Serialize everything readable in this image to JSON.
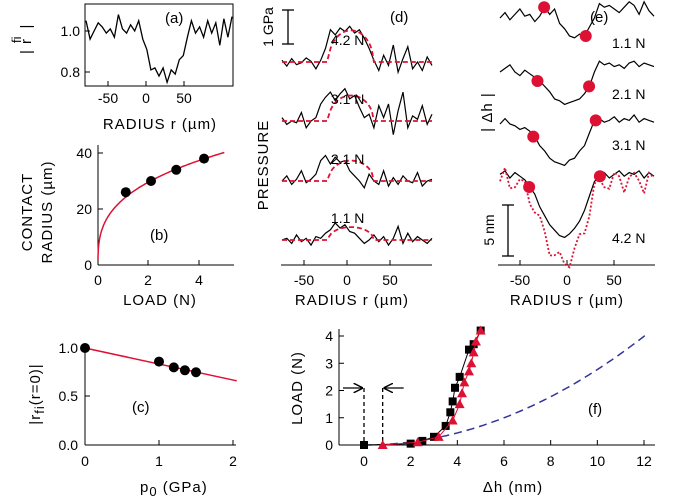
{
  "colors": {
    "black": "#000000",
    "red": "#dd1133",
    "blue": "#333399"
  },
  "chart_data": [
    {
      "panel": "a",
      "type": "line",
      "ylabel": "| r fi |",
      "xlabel": "RADIUS r (µm)",
      "xlim": [
        -85,
        100
      ],
      "ylim": [
        0.72,
        1.1
      ],
      "xticks": [
        "-50",
        "0",
        "50"
      ],
      "yticks": [
        "1.0",
        "0.8"
      ],
      "y": [
        1.05,
        0.96,
        1.0,
        1.04,
        1.02,
        0.99,
        1.01,
        0.97,
        1.08,
        1.01,
        0.99,
        1.03,
        1.0,
        1.05,
        0.96,
        0.91,
        0.81,
        0.82,
        0.78,
        0.82,
        0.75,
        0.81,
        0.79,
        0.86,
        0.88,
        0.97,
        1.05,
        0.99,
        1.02,
        0.97,
        1.05,
        0.99,
        1.04,
        0.93,
        1.06,
        0.97,
        1.07
      ]
    },
    {
      "panel": "b",
      "type": "scatter",
      "ylabel": [
        "CONTACT",
        "RADIUS (µm)"
      ],
      "xlabel": "LOAD (N)",
      "xlim": [
        0,
        5
      ],
      "ylim": [
        0,
        40
      ],
      "xticks": [
        "0",
        "2",
        "4"
      ],
      "yticks": [
        "0",
        "20",
        "40"
      ],
      "x": [
        1.1,
        2.1,
        3.1,
        4.2
      ],
      "y": [
        26,
        30,
        34,
        38
      ],
      "fit": "a = 23.5·L^(1/3)"
    },
    {
      "panel": "c",
      "type": "scatter",
      "ylabel": "|r fi (r=0)|",
      "xlabel": "p 0 (GPa)",
      "xlim": [
        0,
        2
      ],
      "ylim": [
        0,
        1.1
      ],
      "xticks": [
        "0",
        "1",
        "2"
      ],
      "yticks": [
        "0.0",
        "0.5",
        "1.0"
      ],
      "x": [
        0,
        1.0,
        1.2,
        1.35,
        1.5
      ],
      "y": [
        1.0,
        0.86,
        0.8,
        0.77,
        0.75
      ],
      "fit": "y = 1 − 0.165·p0"
    },
    {
      "panel": "d",
      "type": "line",
      "ylabel": "PRESSURE",
      "xlabel": "RADIUS r (µm)",
      "scale_bar": "1 GPa",
      "xlim": [
        -85,
        100
      ],
      "xticks": [
        "-50",
        "0",
        "50"
      ],
      "series": [
        {
          "name": "4.2 N",
          "y": [
            0.05,
            -0.12,
            0.1,
            -0.08,
            -0.02,
            0.12,
            0.02,
            -0.2,
            0.05,
            0.4,
            0.95,
            0.8,
            1.0,
            0.9,
            1.05,
            0.85,
            0.95,
            0.7,
            0.4,
            0.05,
            -0.25,
            0.2,
            -0.1,
            0.5,
            -0.3,
            0.1,
            0.45,
            -0.2,
            0.0,
            -0.25,
            0.15,
            -0.1
          ]
        },
        {
          "name": "3.1 N",
          "y": [
            0.1,
            -0.1,
            0.0,
            -0.05,
            0.25,
            -0.2,
            0.0,
            0.1,
            0.5,
            0.7,
            0.85,
            0.6,
            0.8,
            0.95,
            0.65,
            0.75,
            0.4,
            0.1,
            0.2,
            -0.2,
            0.45,
            0.1,
            0.5,
            -0.4,
            0.3,
            0.85,
            -0.2,
            0.15,
            0.05,
            0.45,
            -0.1,
            0.2
          ]
        },
        {
          "name": "2.1 N",
          "y": [
            0.0,
            0.15,
            -0.1,
            0.05,
            0.3,
            -0.05,
            0.05,
            0.2,
            0.6,
            0.75,
            0.5,
            0.7,
            0.55,
            0.6,
            0.3,
            0.15,
            0.0,
            -0.2,
            0.2,
            0.0,
            -0.1,
            0.3,
            -0.15,
            0.1,
            -0.1,
            0.15,
            0.0,
            -0.05,
            0.25,
            -0.15,
            0.0,
            0.05
          ]
        },
        {
          "name": "1.1 N",
          "y": [
            0.0,
            0.05,
            -0.1,
            0.15,
            -0.05,
            0.05,
            -0.15,
            0.1,
            0.05,
            0.2,
            0.3,
            0.5,
            0.35,
            0.45,
            0.25,
            0.2,
            0.05,
            -0.1,
            0.0,
            0.15,
            -0.05,
            0.1,
            -0.15,
            0.05,
            0.4,
            -0.1,
            0.2,
            -0.05,
            0.1,
            0.0,
            -0.1,
            0.05
          ]
        }
      ]
    },
    {
      "panel": "e",
      "type": "line",
      "ylabel": "| Δh |",
      "xlabel": "RADIUS r (µm)",
      "scale_bar": "5 nm",
      "xlim": [
        -85,
        100
      ],
      "xticks": [
        "-50",
        "0",
        "50"
      ],
      "series": [
        {
          "name": "1.1 N",
          "y": [
            0.0,
            0.3,
            -0.1,
            0.2,
            0.5,
            0.1,
            0.2,
            -0.2,
            0.1,
            0.6,
            0.2,
            0.5,
            -0.3,
            -0.6,
            -1.0,
            -1.1,
            -0.9,
            -1.0,
            -0.5,
            0.0,
            0.8,
            0.6,
            0.7,
            0.5,
            0.3,
            0.6,
            0.9,
            0.7,
            0.2,
            0.9,
            0.4,
            0.1
          ]
        },
        {
          "name": "2.1 N",
          "y": [
            0.0,
            0.2,
            0.4,
            0.0,
            -0.2,
            0.1,
            -0.1,
            -0.3,
            -0.5,
            -0.8,
            -1.1,
            -1.5,
            -1.6,
            -1.8,
            -1.7,
            -1.6,
            -1.5,
            -1.2,
            -0.8,
            0.0,
            0.6,
            0.4,
            0.5,
            0.3,
            0.4,
            0.2,
            0.5,
            0.6,
            0.3,
            0.5,
            0.4,
            0.3
          ]
        },
        {
          "name": "3.1 N",
          "y": [
            0.0,
            0.3,
            0.0,
            -0.1,
            -0.3,
            -0.2,
            -0.4,
            -0.7,
            -1.2,
            -1.5,
            -1.9,
            -2.1,
            -2.2,
            -2.3,
            -2.0,
            -1.9,
            -1.5,
            -1.2,
            -0.5,
            0.2,
            0.3,
            0.1,
            0.2,
            0.4,
            0.1,
            0.3,
            0.2,
            0.5,
            0.1,
            0.3,
            0.2,
            0.1
          ]
        },
        {
          "name": "4.2 N",
          "y": [
            0.2,
            0.4,
            0.0,
            0.3,
            0.1,
            -0.1,
            -0.5,
            -0.9,
            -1.6,
            -2.1,
            -2.6,
            -2.9,
            -3.2,
            -3.3,
            -3.1,
            -2.8,
            -2.4,
            -1.8,
            -1.0,
            -0.2,
            0.1,
            0.3,
            0.0,
            0.2,
            0.4,
            0.1,
            0.3,
            0.2,
            0.4,
            0.0,
            0.3,
            0.1
          ]
        }
      ]
    },
    {
      "panel": "f",
      "type": "scatter",
      "ylabel": "LOAD (N)",
      "xlabel": "Δh (nm)",
      "xlim": [
        -1.2,
        12.8
      ],
      "ylim": [
        0,
        4.3
      ],
      "xticks": [
        "0",
        "2",
        "4",
        "6",
        "8",
        "10",
        "12"
      ],
      "yticks": [
        "0",
        "1",
        "2",
        "3",
        "4"
      ],
      "series": [
        {
          "marker": "square",
          "color": "#000000",
          "x": [
            0.0,
            2.0,
            2.5,
            3.0,
            3.5,
            3.7,
            3.8,
            3.9,
            4.1,
            4.5,
            4.7,
            5.0
          ],
          "y": [
            0.0,
            0.05,
            0.15,
            0.3,
            0.7,
            1.2,
            1.6,
            2.1,
            2.5,
            3.5,
            3.7,
            4.2
          ]
        },
        {
          "marker": "triangle",
          "color": "#dd1133",
          "x": [
            0.8,
            2.3,
            3.2,
            3.8,
            4.1,
            4.2,
            4.3,
            4.5,
            4.6,
            4.7,
            4.8,
            5.0
          ],
          "y": [
            0.0,
            0.1,
            0.3,
            0.9,
            1.5,
            1.9,
            2.3,
            2.7,
            3.0,
            3.4,
            3.8,
            4.2
          ]
        },
        {
          "style": "dashed",
          "color": "#333399",
          "fit": "L = 0.0277·Δh²"
        }
      ],
      "arrow_markers_x": [
        0,
        0.8
      ]
    }
  ]
}
